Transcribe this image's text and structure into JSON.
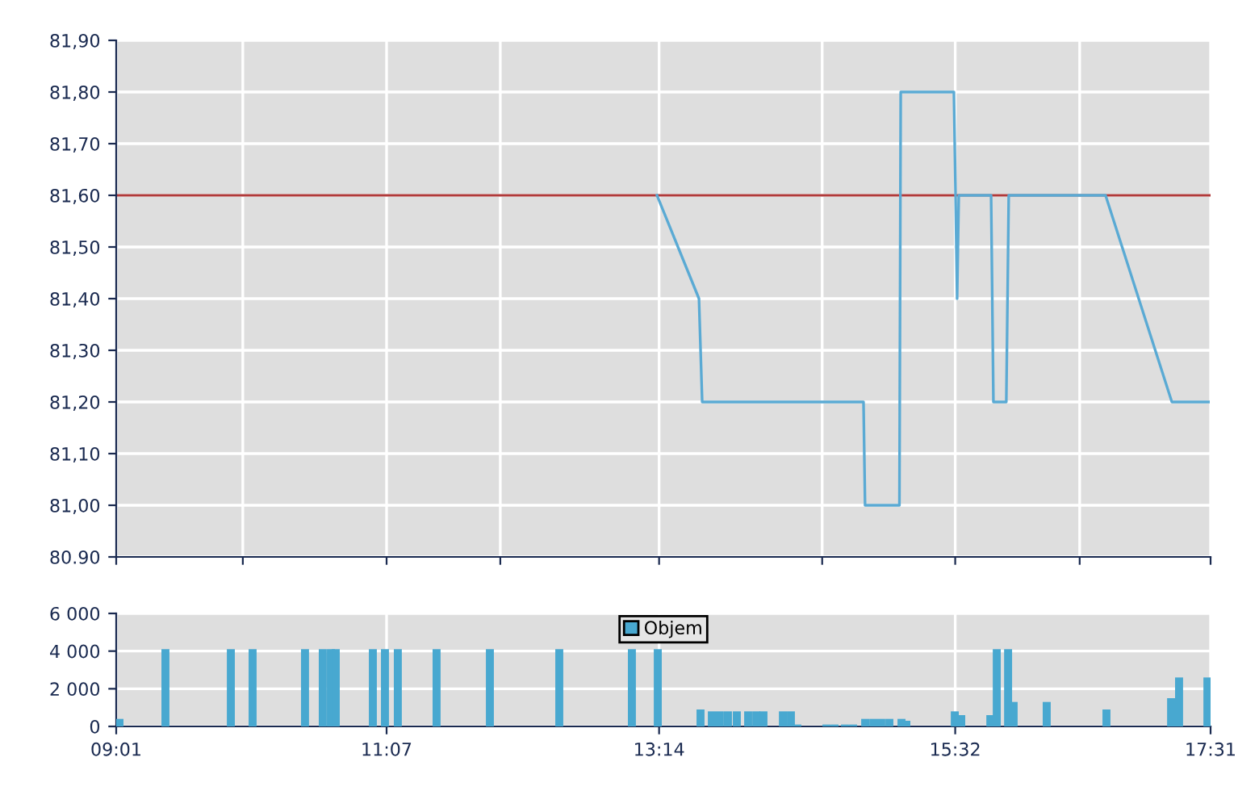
{
  "chart_data": [
    {
      "type": "line",
      "x": [
        13.217,
        13.543,
        13.568,
        14.821,
        14.833,
        15.1,
        15.11,
        15.523,
        15.536,
        15.548,
        15.561,
        15.812,
        15.83,
        15.93,
        15.949,
        16.701,
        17.216,
        17.5
      ],
      "values": [
        81.6,
        81.4,
        81.2,
        81.2,
        81.0,
        81.0,
        81.8,
        81.8,
        81.6,
        81.4,
        81.6,
        81.6,
        81.2,
        81.2,
        81.6,
        81.6,
        81.2,
        81.2
      ],
      "color": "#5aaad4",
      "xlim": [
        9.0167,
        17.5167
      ],
      "xticks": [
        {
          "value": 9.0167,
          "label": null
        },
        {
          "value": 10.0,
          "label": null
        },
        {
          "value": 11.1167,
          "label": null
        },
        {
          "value": 12.0,
          "label": null
        },
        {
          "value": 13.2333,
          "label": null
        },
        {
          "value": 14.5,
          "label": null
        },
        {
          "value": 15.5333,
          "label": null
        },
        {
          "value": 16.5,
          "label": null
        },
        {
          "value": 17.5167,
          "label": null
        }
      ],
      "ylim": [
        80.9,
        81.9
      ],
      "yticks": [
        {
          "value": 80.9,
          "label": "80.90"
        },
        {
          "value": 81.0,
          "label": "81,00"
        },
        {
          "value": 81.1,
          "label": "81,10"
        },
        {
          "value": 81.2,
          "label": "81,20"
        },
        {
          "value": 81.3,
          "label": "81,30"
        },
        {
          "value": 81.4,
          "label": "81,40"
        },
        {
          "value": 81.5,
          "label": "81,50"
        },
        {
          "value": 81.6,
          "label": "81,60"
        },
        {
          "value": 81.7,
          "label": "81,70"
        },
        {
          "value": 81.8,
          "label": "81,80"
        },
        {
          "value": 81.9,
          "label": "81,90"
        }
      ],
      "ref_lines": [
        {
          "axis": "y",
          "value": 81.6,
          "color": "#b03a3a"
        }
      ],
      "grid": true,
      "tick_labels": "y"
    },
    {
      "type": "bar",
      "x": [
        9.042,
        9.399,
        9.907,
        10.076,
        10.483,
        10.621,
        10.684,
        10.722,
        11.01,
        11.104,
        11.204,
        11.505,
        11.919,
        12.458,
        13.022,
        13.223,
        13.555,
        13.643,
        13.705,
        13.768,
        13.837,
        13.925,
        13.988,
        14.044,
        14.195,
        14.257,
        14.307,
        14.533,
        14.596,
        14.677,
        14.74,
        14.834,
        14.897,
        14.959,
        15.022,
        15.116,
        15.154,
        15.53,
        15.58,
        15.806,
        15.856,
        15.944,
        15.987,
        16.244,
        16.708,
        17.21,
        17.272,
        17.492
      ],
      "series": [
        {
          "name": "Objem",
          "color": "#48a8d0",
          "values": [
            400,
            4100,
            4100,
            4100,
            4100,
            4100,
            4100,
            4100,
            4100,
            4100,
            4100,
            4100,
            4100,
            4100,
            4100,
            4100,
            900,
            800,
            800,
            800,
            800,
            800,
            800,
            800,
            800,
            800,
            100,
            100,
            100,
            100,
            100,
            400,
            400,
            400,
            400,
            400,
            300,
            800,
            600,
            600,
            4100,
            4100,
            1300,
            1300,
            900,
            1500,
            2600,
            2600
          ]
        }
      ],
      "xlim": [
        9.0167,
        17.5167
      ],
      "xticks": [
        {
          "value": 9.0167,
          "label": "09:01"
        },
        {
          "value": 11.1167,
          "label": "11:07"
        },
        {
          "value": 13.2333,
          "label": "13:14"
        },
        {
          "value": 15.5333,
          "label": "15:32"
        },
        {
          "value": 17.5167,
          "label": "17:31"
        }
      ],
      "ylim": [
        0,
        6000
      ],
      "yticks": [
        {
          "value": 0,
          "label": "0"
        },
        {
          "value": 2000,
          "label": "2 000"
        },
        {
          "value": 4000,
          "label": "4 000"
        },
        {
          "value": 6000,
          "label": "6 000"
        }
      ],
      "grid": true,
      "legend": "top"
    }
  ]
}
